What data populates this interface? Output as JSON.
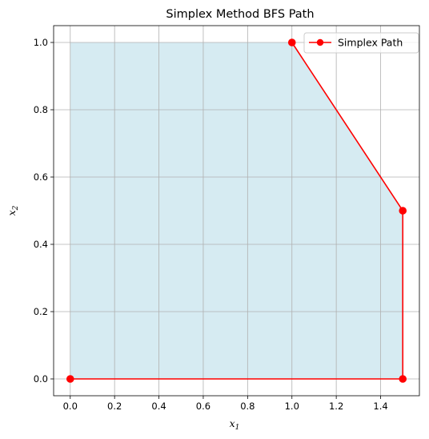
{
  "chart_data": {
    "type": "line",
    "title": "Simplex Method BFS Path",
    "xlabel_base": "x",
    "xlabel_sub": "1",
    "ylabel_base": "x",
    "ylabel_sub": "2",
    "xlim": [
      -0.075,
      1.575
    ],
    "ylim": [
      -0.05,
      1.05
    ],
    "x_ticks": [
      0.0,
      0.2,
      0.4,
      0.6,
      0.8,
      1.0,
      1.2,
      1.4
    ],
    "x_tick_labels": [
      "0.0",
      "0.2",
      "0.4",
      "0.6",
      "0.8",
      "1.0",
      "1.2",
      "1.4"
    ],
    "y_ticks": [
      0.0,
      0.2,
      0.4,
      0.6,
      0.8,
      1.0
    ],
    "y_tick_labels": [
      "0.0",
      "0.2",
      "0.4",
      "0.6",
      "0.8",
      "1.0"
    ],
    "grid": true,
    "legend_position": "top-right",
    "feasible_region": {
      "vertices": [
        [
          0,
          0
        ],
        [
          0,
          1
        ],
        [
          1,
          1
        ],
        [
          1.5,
          0.5
        ],
        [
          1.5,
          0
        ]
      ],
      "color": "#add8e6"
    },
    "series": [
      {
        "name": "Simplex Path",
        "x": [
          0,
          1.5,
          1.5,
          1
        ],
        "y": [
          0,
          0,
          0.5,
          1
        ],
        "color": "#ff0000",
        "marker": "circle"
      }
    ]
  }
}
